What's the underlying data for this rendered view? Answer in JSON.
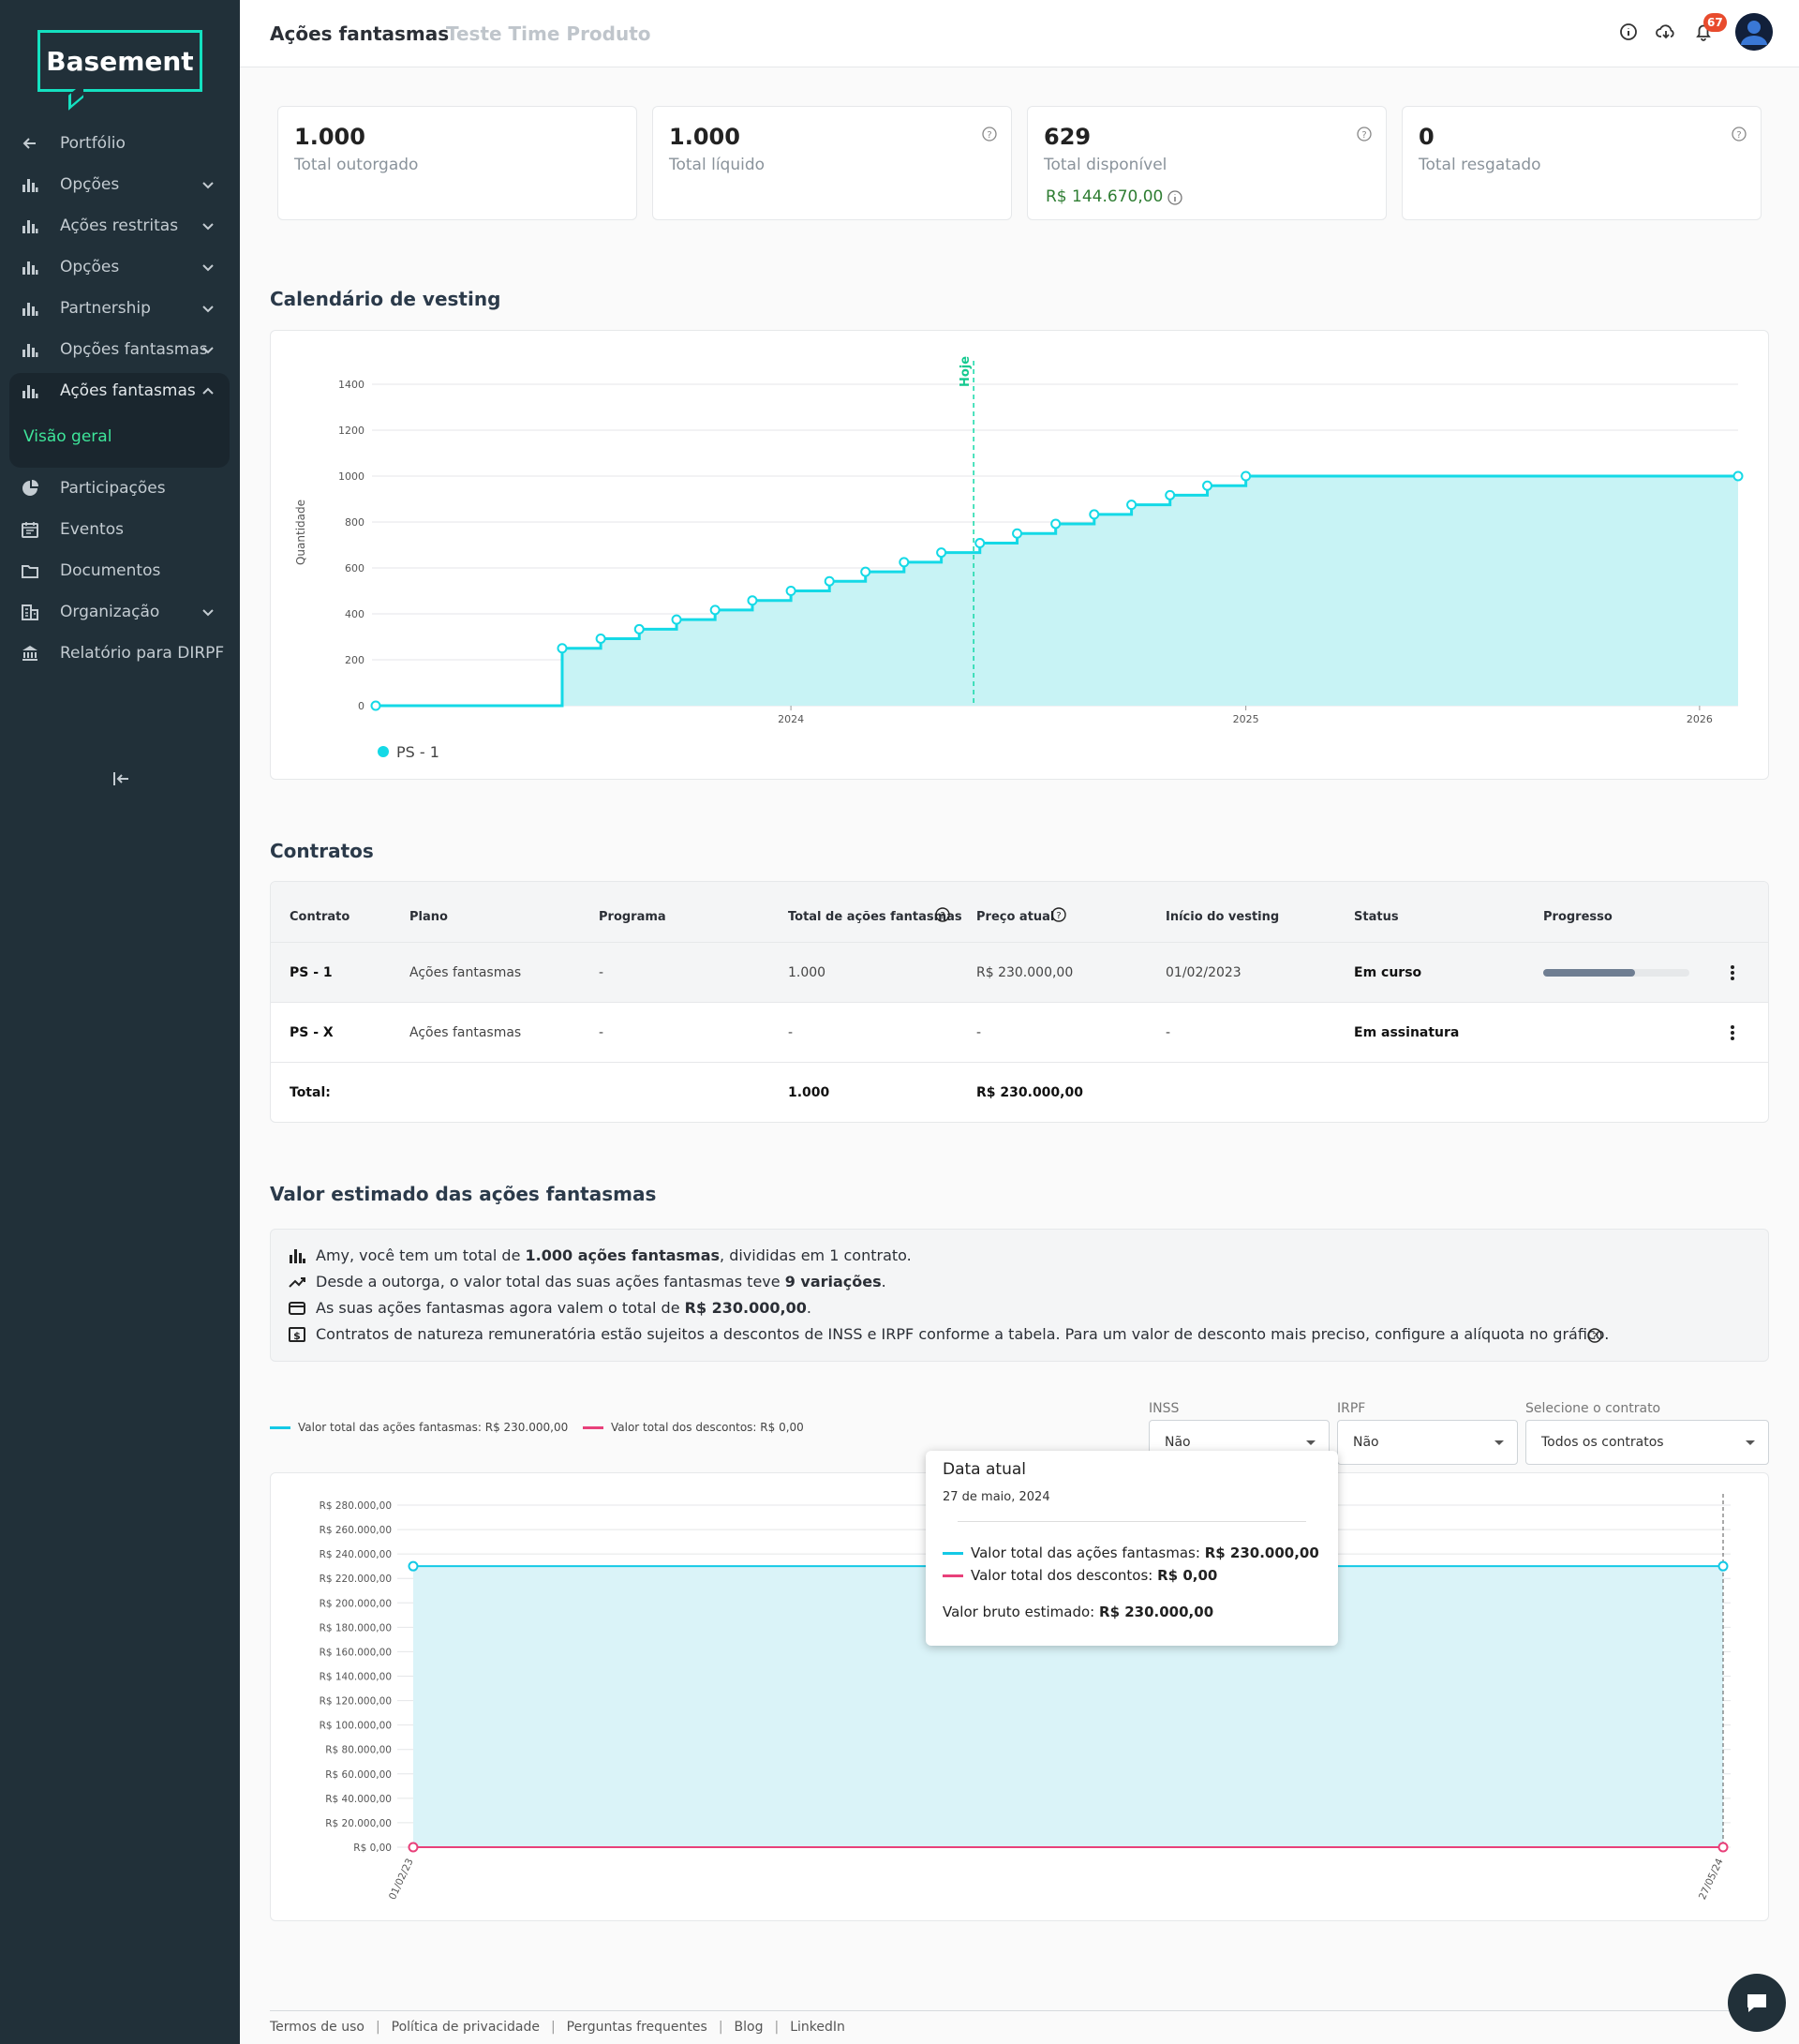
{
  "brand": {
    "logo": "Basement"
  },
  "sidebar": {
    "items": [
      {
        "label": "Portfólio",
        "icon": "arrow-left-icon"
      },
      {
        "label": "Opções",
        "icon": "bar-chart-icon"
      },
      {
        "label": "Ações restritas",
        "icon": "bar-chart-icon"
      },
      {
        "label": "Opções",
        "icon": "bar-chart-icon"
      },
      {
        "label": "Partnership",
        "icon": "bar-chart-icon"
      },
      {
        "label": "Opções fantasmas",
        "icon": "bar-chart-icon"
      },
      {
        "label": "Ações fantasmas",
        "icon": "bar-chart-icon"
      },
      {
        "label": "Participações",
        "icon": "pie-chart-icon"
      },
      {
        "label": "Eventos",
        "icon": "calendar-icon"
      },
      {
        "label": "Documentos",
        "icon": "folder-icon"
      },
      {
        "label": "Organização",
        "icon": "building-icon"
      },
      {
        "label": "Relatório para DIRPF",
        "icon": "bank-icon"
      }
    ],
    "sub_item": "Visão geral"
  },
  "header": {
    "title": "Ações fantasmas",
    "subtitle": "Teste Time Produto",
    "notifications": "67"
  },
  "stats": [
    {
      "value": "1.000",
      "label": "Total outorgado"
    },
    {
      "value": "1.000",
      "label": "Total líquido"
    },
    {
      "value": "629",
      "label": "Total disponível",
      "money": "R$ 144.670,00"
    },
    {
      "value": "0",
      "label": "Total resgatado"
    }
  ],
  "vesting": {
    "title": "Calendário de vesting",
    "today_label": "Hoje",
    "legend": "PS - 1",
    "ylabel": "Quantidade"
  },
  "chart_data": [
    {
      "type": "line",
      "ylabel": "Quantidade",
      "ylim": [
        0,
        1400
      ],
      "yticks": [
        0,
        200,
        400,
        600,
        800,
        1000,
        1200,
        1400
      ],
      "xticks": [
        "2024",
        "2025",
        "2026"
      ],
      "series": [
        {
          "name": "PS - 1",
          "x": [
            "2023-02-01",
            "2023-07-01",
            "2023-08-01",
            "2023-09-01",
            "2023-10-01",
            "2023-11-01",
            "2023-12-01",
            "2024-01-01",
            "2024-02-01",
            "2024-03-01",
            "2024-04-01",
            "2024-05-01",
            "2024-06-01",
            "2024-07-01",
            "2024-08-01",
            "2024-09-01",
            "2024-10-01",
            "2024-11-01",
            "2024-12-01",
            "2025-01-01",
            "2025-02-01",
            "2026-02-01"
          ],
          "y": [
            0,
            250,
            292,
            333,
            375,
            417,
            458,
            500,
            542,
            583,
            625,
            667,
            708,
            750,
            792,
            833,
            875,
            917,
            958,
            1000,
            1000,
            1000
          ]
        }
      ],
      "annotation": "Hoje"
    },
    {
      "type": "area",
      "ylim": [
        0,
        280000
      ],
      "yticks": [
        "R$ 0,00",
        "R$ 20.000,00",
        "R$ 40.000,00",
        "R$ 60.000,00",
        "R$ 80.000,00",
        "R$ 100.000,00",
        "R$ 120.000,00",
        "R$ 140.000,00",
        "R$ 160.000,00",
        "R$ 180.000,00",
        "R$ 200.000,00",
        "R$ 220.000,00",
        "R$ 240.000,00",
        "R$ 260.000,00",
        "R$ 280.000,00"
      ],
      "xticks": [
        "01/02/23",
        "27/05/24"
      ],
      "series": [
        {
          "name": "Valor total das ações fantasmas: R$ 230.000,00",
          "x": [
            "01/02/23",
            "27/05/24"
          ],
          "y": [
            230000,
            230000
          ]
        },
        {
          "name": "Valor total dos descontos: R$ 0,00",
          "x": [
            "01/02/23",
            "27/05/24"
          ],
          "y": [
            0,
            0
          ]
        }
      ]
    }
  ],
  "contracts": {
    "title": "Contratos",
    "headers": [
      "Contrato",
      "Plano",
      "Programa",
      "Total de ações fantasmas",
      "Preço atual",
      "Início do vesting",
      "Status",
      "Progresso"
    ],
    "rows": [
      {
        "contrato": "PS - 1",
        "plano": "Ações fantasmas",
        "programa": "-",
        "total": "1.000",
        "preco": "R$ 230.000,00",
        "inicio": "01/02/2023",
        "status": "Em curso",
        "progress": 0.63
      },
      {
        "contrato": "PS - X",
        "plano": "Ações fantasmas",
        "programa": "-",
        "total": "-",
        "preco": "-",
        "inicio": "-",
        "status": "Em assinatura"
      }
    ],
    "total_label": "Total:",
    "total_qty": "1.000",
    "total_price": "R$ 230.000,00"
  },
  "valuation": {
    "title": "Valor estimado das ações fantasmas",
    "lines": [
      {
        "pre": "Amy, você tem um total de ",
        "bold": "1.000 ações fantasmas",
        "post": ", divididas em 1 contrato."
      },
      {
        "pre": "Desde a outorga, o valor total das suas ações fantasmas teve ",
        "bold": "9 variações",
        "post": "."
      },
      {
        "pre": "As suas ações fantasmas agora valem o total de ",
        "bold": "R$ 230.000,00",
        "post": "."
      },
      {
        "pre": "Contratos de natureza remuneratória estão sujeitos a descontos de INSS e IRPF conforme a tabela. Para um valor de desconto mais preciso, configure a alíquota no gráfico.",
        "bold": "",
        "post": ""
      }
    ],
    "legend1": "Valor total das ações fantasmas: R$ 230.000,00",
    "legend2": "Valor total dos descontos: R$ 0,00",
    "inss_label": "INSS",
    "inss_value": "Não",
    "irpf_label": "IRPF",
    "irpf_value": "Não",
    "contract_label": "Selecione o contrato",
    "contract_value": "Todos os contratos"
  },
  "tooltip": {
    "title": "Data atual",
    "date": "27 de maio, 2024",
    "l1": "Valor total das ações fantasmas:",
    "v1": "R$ 230.000,00",
    "l2": "Valor total dos descontos:",
    "v2": "R$ 0,00",
    "l3": "Valor bruto estimado:",
    "v3": "R$ 230.000,00"
  },
  "footer": [
    "Termos de uso",
    "Política de privacidade",
    "Perguntas frequentes",
    "Blog",
    "LinkedIn"
  ],
  "colors": {
    "teal": "#14d9e6",
    "pink": "#e8407a",
    "green": "#3ee59a",
    "sidebar": "#213039"
  }
}
